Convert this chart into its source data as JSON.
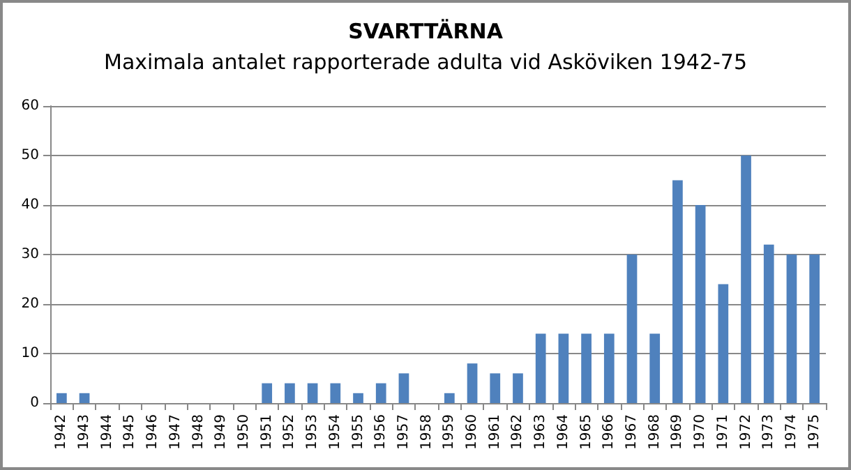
{
  "chart_data": {
    "type": "bar",
    "title": "SVARTTÄRNA",
    "subtitle": "Maximala antalet rapporterade adulta vid Asköviken 1942-75",
    "categories": [
      "1942",
      "1943",
      "1944",
      "1945",
      "1946",
      "1947",
      "1948",
      "1949",
      "1950",
      "1951",
      "1952",
      "1953",
      "1954",
      "1955",
      "1956",
      "1957",
      "1958",
      "1959",
      "1960",
      "1961",
      "1962",
      "1963",
      "1964",
      "1965",
      "1966",
      "1967",
      "1968",
      "1969",
      "1970",
      "1971",
      "1972",
      "1973",
      "1974",
      "1975"
    ],
    "values": [
      2,
      2,
      0,
      0,
      0,
      0,
      0,
      0,
      0,
      4,
      4,
      4,
      4,
      2,
      4,
      6,
      0,
      2,
      8,
      6,
      6,
      14,
      14,
      14,
      14,
      30,
      14,
      45,
      40,
      24,
      50,
      32,
      30,
      30
    ],
    "color": "#4f81bd",
    "ylim": [
      0,
      60
    ],
    "yticks": [
      0,
      10,
      20,
      30,
      40,
      50,
      60
    ],
    "grid": "y"
  }
}
